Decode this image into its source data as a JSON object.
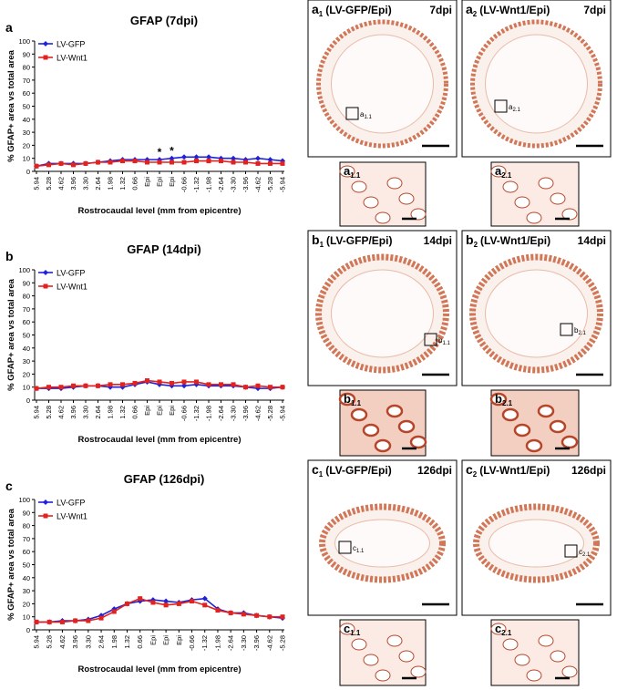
{
  "chart_data": [
    {
      "type": "line",
      "panel": "a",
      "title": "GFAP (7dpi)",
      "x_label": "Rostrocaudal level (mm from epicentre)",
      "y_label": "% GFAP+ area vs total area",
      "categories": [
        "5.94",
        "5.28",
        "4.62",
        "3.96",
        "3.30",
        "2.64",
        "1.98",
        "1.32",
        "0.66",
        "Epi",
        "Epi",
        "Epi",
        "-0.66",
        "-1.32",
        "-1.98",
        "-2.64",
        "-3.30",
        "-3.96",
        "-4.62",
        "-5.28",
        "-5.94"
      ],
      "series": [
        {
          "name": "LV-GFP",
          "color": "#1f22d8",
          "marker": "diamond",
          "values": [
            4,
            6,
            6,
            6,
            6,
            7,
            8,
            9,
            9,
            9,
            9,
            10,
            11,
            11,
            11,
            10,
            10,
            9,
            10,
            9,
            8
          ]
        },
        {
          "name": "LV-Wnt1",
          "color": "#e0231f",
          "marker": "square",
          "values": [
            4,
            5,
            6,
            5,
            6,
            7,
            7,
            8,
            8,
            7,
            7,
            7,
            7,
            8,
            8,
            8,
            7,
            7,
            6,
            6,
            6
          ]
        }
      ],
      "annotations": [
        {
          "text": "*",
          "category": 10
        },
        {
          "text": "*",
          "category": 11
        }
      ],
      "ylim": [
        0,
        100
      ],
      "yticks": [
        0,
        10,
        20,
        30,
        40,
        50,
        60,
        70,
        80,
        90,
        100
      ],
      "legend": "top-left"
    },
    {
      "type": "line",
      "panel": "b",
      "title": "GFAP (14dpi)",
      "x_label": "Rostrocaudal level (mm from epicentre)",
      "y_label": "% GFAP+ area vs total area",
      "categories": [
        "5.94",
        "5.28",
        "4.62",
        "3.96",
        "3.30",
        "2.64",
        "1.98",
        "1.32",
        "0.66",
        "Epi",
        "Epi",
        "Epi",
        "-0.66",
        "-1.32",
        "-1.98",
        "-2.64",
        "-3.30",
        "-3.96",
        "-4.62",
        "-5.28",
        "-5.94"
      ],
      "series": [
        {
          "name": "LV-GFP",
          "color": "#1f22d8",
          "marker": "diamond",
          "values": [
            9,
            9,
            9,
            10,
            11,
            11,
            10,
            10,
            12,
            14,
            12,
            11,
            11,
            12,
            11,
            11,
            11,
            10,
            9,
            9,
            10
          ]
        },
        {
          "name": "LV-Wnt1",
          "color": "#e0231f",
          "marker": "square",
          "values": [
            9,
            10,
            10,
            11,
            11,
            11,
            12,
            12,
            13,
            15,
            14,
            13,
            14,
            14,
            12,
            12,
            12,
            10,
            11,
            10,
            10
          ]
        }
      ],
      "ylim": [
        0,
        100
      ],
      "yticks": [
        0,
        10,
        20,
        30,
        40,
        50,
        60,
        70,
        80,
        90,
        100
      ],
      "legend": "top-left"
    },
    {
      "type": "line",
      "panel": "c",
      "title": "GFAP (126dpi)",
      "x_label": "Rostrocaudal level (mm from epicentre)",
      "y_label": "% GFAP+ area vs total area",
      "categories": [
        "5.94",
        "5.28",
        "4.62",
        "3.96",
        "3.30",
        "2.64",
        "1.98",
        "1.32",
        "0.66",
        "Epi",
        "Epi",
        "Epi",
        "-0.66",
        "-1.32",
        "-1.98",
        "-2.64",
        "-3.30",
        "-3.96",
        "-4.62",
        "-5.28"
      ],
      "series": [
        {
          "name": "LV-GFP",
          "color": "#1f22d8",
          "marker": "diamond",
          "values": [
            6,
            6,
            7,
            7,
            8,
            11,
            16,
            20,
            22,
            23,
            22,
            21,
            23,
            24,
            16,
            13,
            13,
            11,
            10,
            9
          ]
        },
        {
          "name": "LV-Wnt1",
          "color": "#e0231f",
          "marker": "square",
          "values": [
            6,
            6,
            6,
            7,
            7,
            9,
            14,
            20,
            24,
            21,
            19,
            20,
            22,
            19,
            15,
            13,
            12,
            11,
            10,
            10
          ]
        }
      ],
      "ylim": [
        0,
        100
      ],
      "yticks": [
        0,
        10,
        20,
        30,
        40,
        50,
        60,
        70,
        80,
        90,
        100
      ],
      "legend": "top-left"
    }
  ],
  "panels": [
    {
      "letter": "a",
      "sub": "1",
      "title": "(LV-GFP/Epi)",
      "dpi": "7dpi",
      "inset_letter": "a",
      "inset_sub": "1.1"
    },
    {
      "letter": "a",
      "sub": "2",
      "title": "(LV-Wnt1/Epi)",
      "dpi": "7dpi",
      "inset_letter": "a",
      "inset_sub": "2.1"
    },
    {
      "letter": "b",
      "sub": "1",
      "title": "(LV-GFP/Epi)",
      "dpi": "14dpi",
      "inset_letter": "b",
      "inset_sub": "1.1"
    },
    {
      "letter": "b",
      "sub": "2",
      "title": "(LV-Wnt1/Epi)",
      "dpi": "14dpi",
      "inset_letter": "b",
      "inset_sub": "2.1"
    },
    {
      "letter": "c",
      "sub": "1",
      "title": "(LV-GFP/Epi)",
      "dpi": "126dpi",
      "inset_letter": "c",
      "inset_sub": "1.1"
    },
    {
      "letter": "c",
      "sub": "2",
      "title": "(LV-Wnt1/Epi)",
      "dpi": "126dpi",
      "inset_letter": "c",
      "inset_sub": "2.1"
    }
  ]
}
